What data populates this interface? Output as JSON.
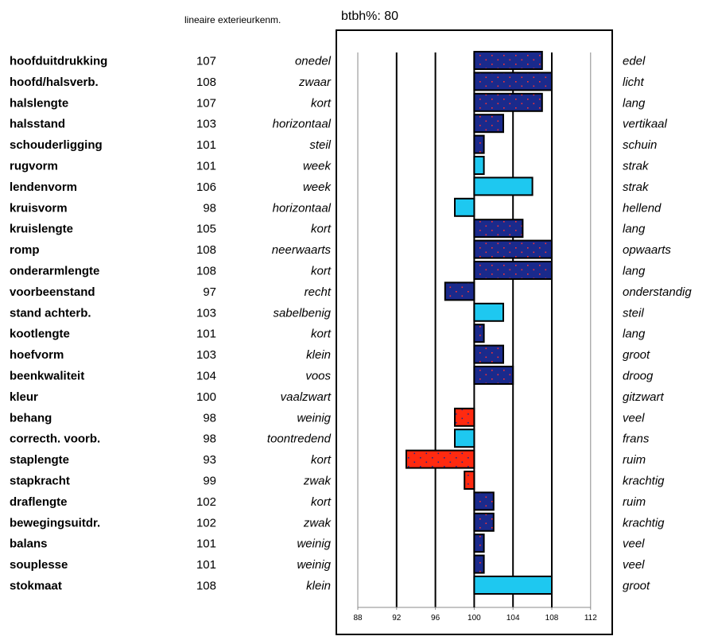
{
  "header": {
    "method_label": "lineaire exterieurkenm.",
    "btbh_label": "btbh%:",
    "btbh_value": "80"
  },
  "colors": {
    "dark_blue": "#1a2a8c",
    "light_blue": "#1ec8f0",
    "red": "#ff2a10",
    "dot_red": "#ff3030",
    "dot_dark": "#1a2a8c"
  },
  "chart_data": {
    "type": "bar",
    "orientation": "horizontal",
    "baseline": 100,
    "xlim": [
      88,
      112
    ],
    "xticks": [
      88,
      92,
      96,
      100,
      104,
      108,
      112
    ],
    "grid_lines": [
      92,
      96,
      104
    ],
    "rows": [
      {
        "trait": "hoofduitdrukking",
        "value": 107,
        "low": "onedel",
        "high": "edel",
        "style": "dark"
      },
      {
        "trait": "hoofd/halsverb.",
        "value": 108,
        "low": "zwaar",
        "high": "licht",
        "style": "dark"
      },
      {
        "trait": "halslengte",
        "value": 107,
        "low": "kort",
        "high": "lang",
        "style": "dark"
      },
      {
        "trait": "halsstand",
        "value": 103,
        "low": "horizontaal",
        "high": "vertikaal",
        "style": "dark"
      },
      {
        "trait": "schouderligging",
        "value": 101,
        "low": "steil",
        "high": "schuin",
        "style": "dark"
      },
      {
        "trait": "rugvorm",
        "value": 101,
        "low": "week",
        "high": "strak",
        "style": "light"
      },
      {
        "trait": "lendenvorm",
        "value": 106,
        "low": "week",
        "high": "strak",
        "style": "light"
      },
      {
        "trait": "kruisvorm",
        "value": 98,
        "low": "horizontaal",
        "high": "hellend",
        "style": "light"
      },
      {
        "trait": "kruislengte",
        "value": 105,
        "low": "kort",
        "high": "lang",
        "style": "dark"
      },
      {
        "trait": "romp",
        "value": 108,
        "low": "neerwaarts",
        "high": "opwaarts",
        "style": "dark"
      },
      {
        "trait": "onderarmlengte",
        "value": 108,
        "low": "kort",
        "high": "lang",
        "style": "dark"
      },
      {
        "trait": "voorbeenstand",
        "value": 97,
        "low": "recht",
        "high": "onderstandig",
        "style": "dark"
      },
      {
        "trait": "stand achterb.",
        "value": 103,
        "low": "sabelbenig",
        "high": "steil",
        "style": "light"
      },
      {
        "trait": "kootlengte",
        "value": 101,
        "low": "kort",
        "high": "lang",
        "style": "dark"
      },
      {
        "trait": "hoefvorm",
        "value": 103,
        "low": "klein",
        "high": "groot",
        "style": "dark"
      },
      {
        "trait": "beenkwaliteit",
        "value": 104,
        "low": "voos",
        "high": "droog",
        "style": "dark"
      },
      {
        "trait": "kleur",
        "value": 100,
        "low": "vaalzwart",
        "high": "gitzwart",
        "style": "none"
      },
      {
        "trait": "behang",
        "value": 98,
        "low": "weinig",
        "high": "veel",
        "style": "red"
      },
      {
        "trait": "correcth. voorb.",
        "value": 98,
        "low": "toontredend",
        "high": "frans",
        "style": "light"
      },
      {
        "trait": "staplengte",
        "value": 93,
        "low": "kort",
        "high": "ruim",
        "style": "red"
      },
      {
        "trait": "stapkracht",
        "value": 99,
        "low": "zwak",
        "high": "krachtig",
        "style": "red"
      },
      {
        "trait": "draflengte",
        "value": 102,
        "low": "kort",
        "high": "ruim",
        "style": "dark"
      },
      {
        "trait": "bewegingsuitdr.",
        "value": 102,
        "low": "zwak",
        "high": "krachtig",
        "style": "dark"
      },
      {
        "trait": "balans",
        "value": 101,
        "low": "weinig",
        "high": "veel",
        "style": "dark"
      },
      {
        "trait": "souplesse",
        "value": 101,
        "low": "weinig",
        "high": "veel",
        "style": "dark"
      },
      {
        "trait": "stokmaat",
        "value": 108,
        "low": "klein",
        "high": "groot",
        "style": "light"
      }
    ]
  }
}
